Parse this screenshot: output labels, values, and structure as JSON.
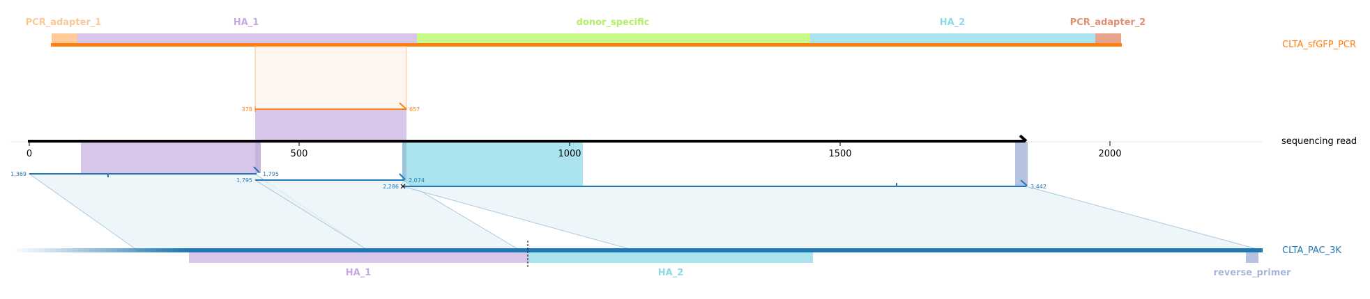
{
  "reference_top": {
    "name": "CLTA_sfGFP_PCR",
    "color": "#ff7f0e",
    "features": [
      {
        "label": "PCR_adapter_1",
        "color": "#ffcc99",
        "label_color": "#f9c995"
      },
      {
        "label": "HA_1",
        "color": "#d8c6ea",
        "label_color": "#c5a9e0"
      },
      {
        "label": "donor_specific",
        "color": "#c8fa8a",
        "label_color": "#b3f065"
      },
      {
        "label": "HA_2",
        "color": "#abe4ee",
        "label_color": "#8fd8e6"
      },
      {
        "label": "PCR_adapter_2",
        "color": "#e9a58b",
        "label_color": "#e09070"
      }
    ]
  },
  "read": {
    "name": "sequencing read",
    "axis_ticks": [
      "0",
      "500",
      "1000",
      "1500",
      "2000"
    ],
    "alignment_labels": {
      "top_start": "378",
      "top_end": "657",
      "seg1_start": "1,369",
      "seg1_end": "1,795",
      "seg2_start": "1,795",
      "seg2_end": "2,074",
      "seg3_start": "2,286",
      "seg3_end": "3,442"
    }
  },
  "reference_bottom": {
    "name": "CLTA_PAC_3K",
    "color": "#1f77b4",
    "features": [
      {
        "label": "HA_1",
        "color": "#d8c6ea",
        "label_color": "#c5a9e0"
      },
      {
        "label": "HA_2",
        "color": "#abe4ee",
        "label_color": "#8fd8e6"
      },
      {
        "label": "reverse_primer",
        "color": "#b5c3e0",
        "label_color": "#a6b6d8"
      }
    ]
  }
}
